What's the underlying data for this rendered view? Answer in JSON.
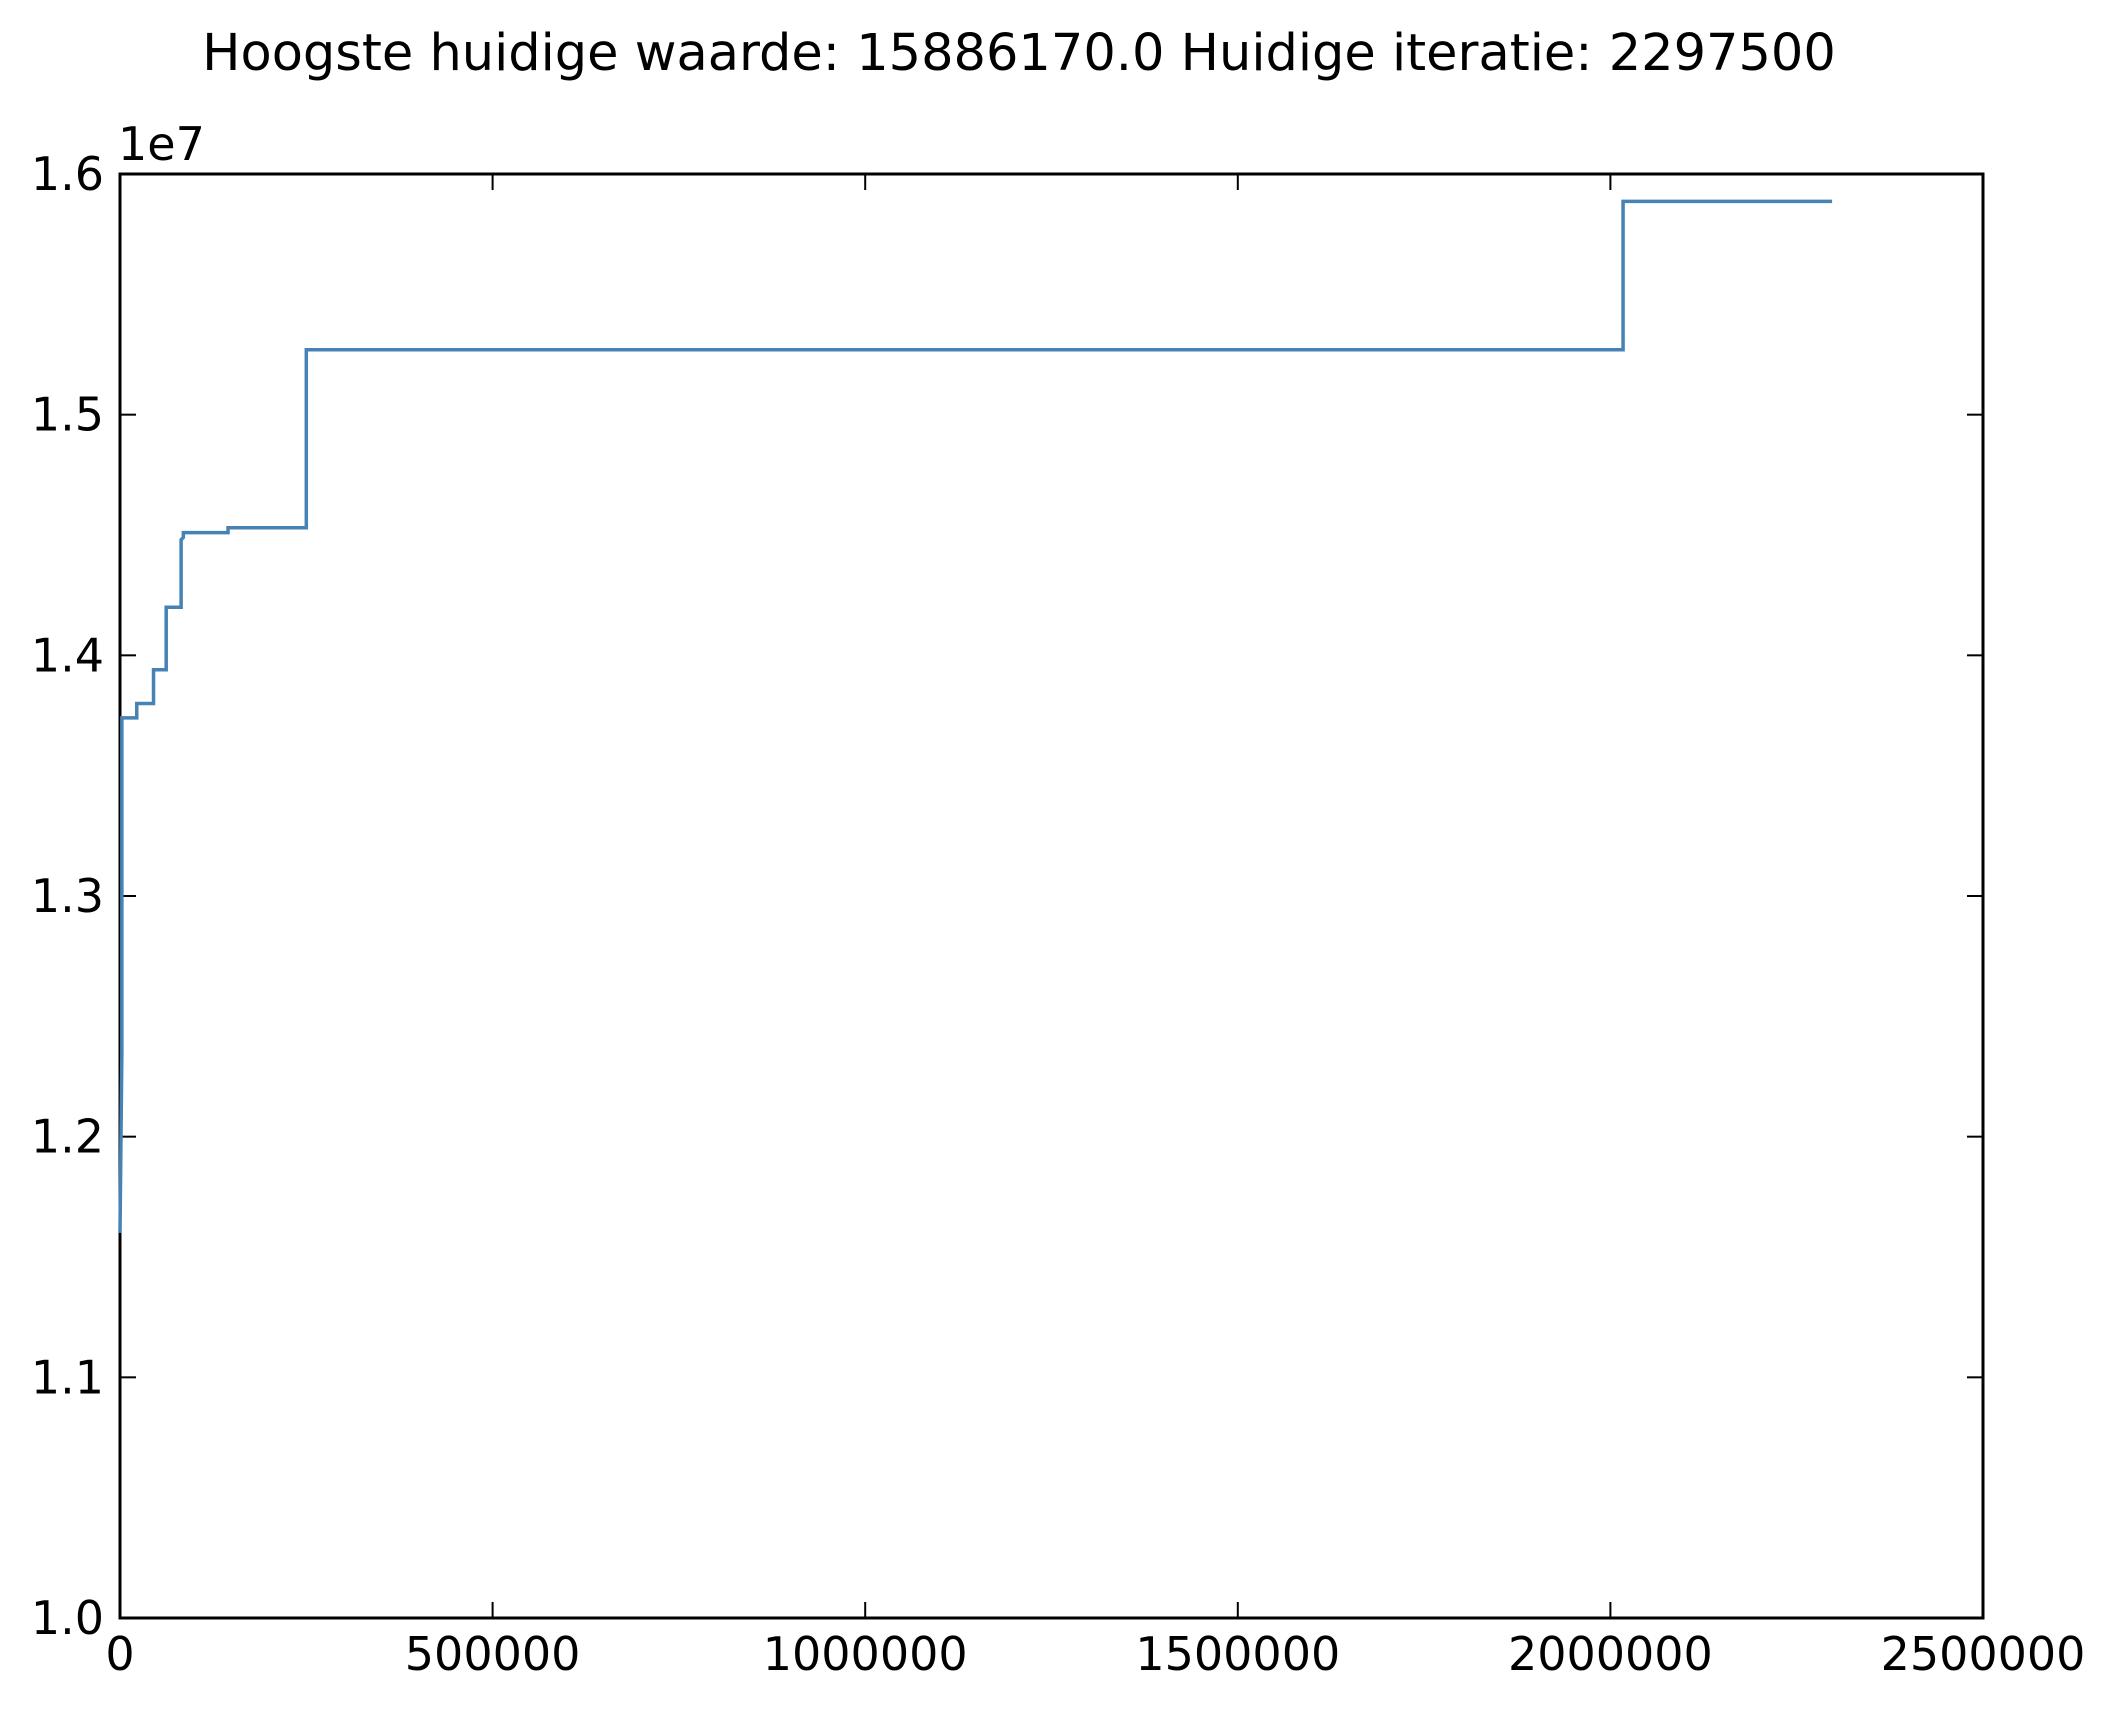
{
  "chart_data": {
    "type": "line",
    "title": "Hoogste huidige waarde: 15886170.0 Huidige iteratie: 2297500",
    "xlabel": "",
    "ylabel": "",
    "y_offset_label": "1e7",
    "xlim": [
      0,
      2500000
    ],
    "ylim": [
      10000000,
      16000000
    ],
    "x_ticks": [
      0,
      500000,
      1000000,
      1500000,
      2000000,
      2500000
    ],
    "x_tick_labels": [
      "0",
      "500000",
      "1000000",
      "1500000",
      "2000000",
      "2500000"
    ],
    "y_ticks": [
      10000000,
      11000000,
      12000000,
      13000000,
      14000000,
      15000000,
      16000000
    ],
    "y_tick_labels": [
      "1.0",
      "1.1",
      "1.2",
      "1.3",
      "1.4",
      "1.5",
      "1.6"
    ],
    "grid": false,
    "line_color": "#4682b4",
    "series": [
      {
        "x": [
          0,
          2500,
          2500,
          22500,
          22500,
          45000,
          45000,
          62000,
          62000,
          82000,
          82000,
          85000,
          85000,
          145000,
          145000,
          250000,
          250000,
          2017000,
          2017000,
          2297500
        ],
        "y": [
          11600000,
          12350000,
          13740000,
          13740000,
          13800000,
          13800000,
          13940000,
          13940000,
          14200000,
          14200000,
          14480000,
          14490000,
          14510000,
          14510000,
          14530000,
          14530000,
          15270000,
          15270000,
          15886170,
          15886170
        ]
      }
    ]
  }
}
